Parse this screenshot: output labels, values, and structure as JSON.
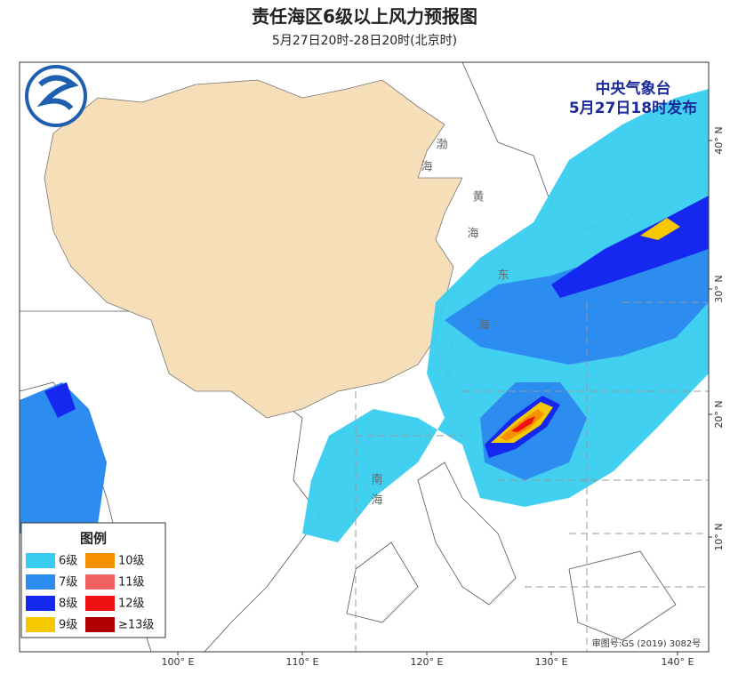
{
  "header": {
    "title": "责任海区6级以上风力预报图",
    "subtitle": "5月27日20时-28日20时(北京时)"
  },
  "issuer": {
    "agency": "中央气象台",
    "issued": "5月27日18时发布"
  },
  "legend": {
    "title": "图例",
    "items": [
      {
        "label": "6级",
        "color": "#38cdf0"
      },
      {
        "label": "7级",
        "color": "#2d8cf0"
      },
      {
        "label": "8级",
        "color": "#1428f0"
      },
      {
        "label": "9级",
        "color": "#f5c800"
      },
      {
        "label": "10级",
        "color": "#f59000"
      },
      {
        "label": "11级",
        "color": "#f26262"
      },
      {
        "label": "12级",
        "color": "#f01212"
      },
      {
        "label": "≥13级",
        "color": "#b00000"
      }
    ]
  },
  "map": {
    "lon_labels": [
      "100° E",
      "110° E",
      "120° E",
      "130° E",
      "140° E"
    ],
    "lat_labels": [
      "40° N",
      "30° N",
      "20° N",
      "10° N"
    ],
    "sea_labels": [
      "渤",
      "海",
      "黄",
      "海",
      "东",
      "海",
      "南",
      "海"
    ]
  },
  "approval": "审图号:GS (2019) 3082号"
}
